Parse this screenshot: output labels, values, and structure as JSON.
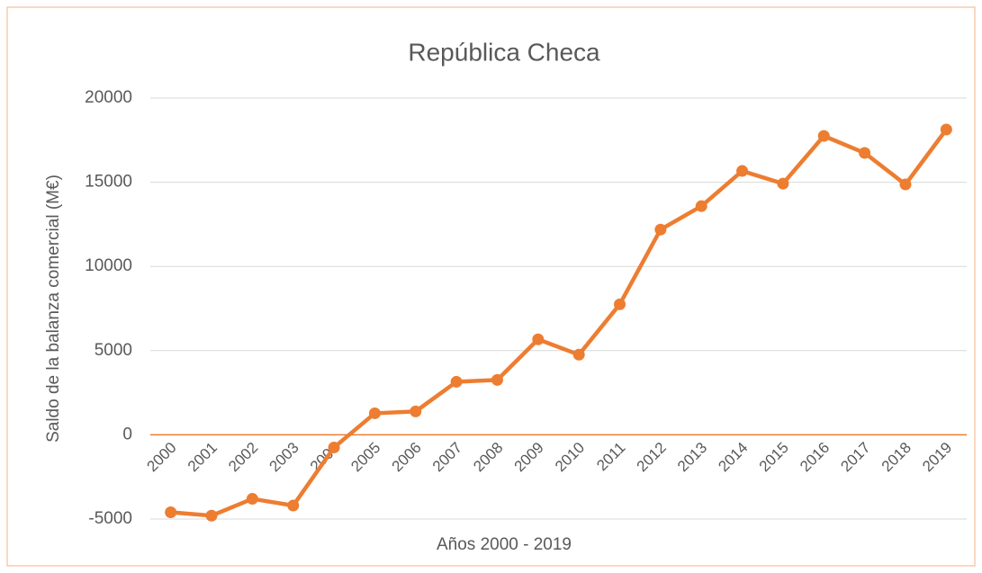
{
  "chart_data": {
    "type": "line",
    "title": "República Checa",
    "x_label": "Años 2000 - 2019",
    "y_label": "Saldo de la balanza comercial (M€)",
    "categories": [
      "2000",
      "2001",
      "2002",
      "2003",
      "2004",
      "2005",
      "2006",
      "2007",
      "2008",
      "2009",
      "2010",
      "2011",
      "2012",
      "2013",
      "2014",
      "2015",
      "2016",
      "2017",
      "2018",
      "2019"
    ],
    "series": [
      {
        "name": "República Checa",
        "color": "#ed7d31",
        "values": [
          -4600,
          -4800,
          -3800,
          -4200,
          -750,
          1280,
          1390,
          3150,
          3260,
          5670,
          4760,
          7750,
          12190,
          13580,
          15670,
          14920,
          17750,
          16740,
          14870,
          18130
        ]
      }
    ],
    "ylim": [
      -5000,
      20000
    ],
    "yticks": [
      -5000,
      0,
      5000,
      10000,
      15000,
      20000
    ],
    "grid": true
  }
}
